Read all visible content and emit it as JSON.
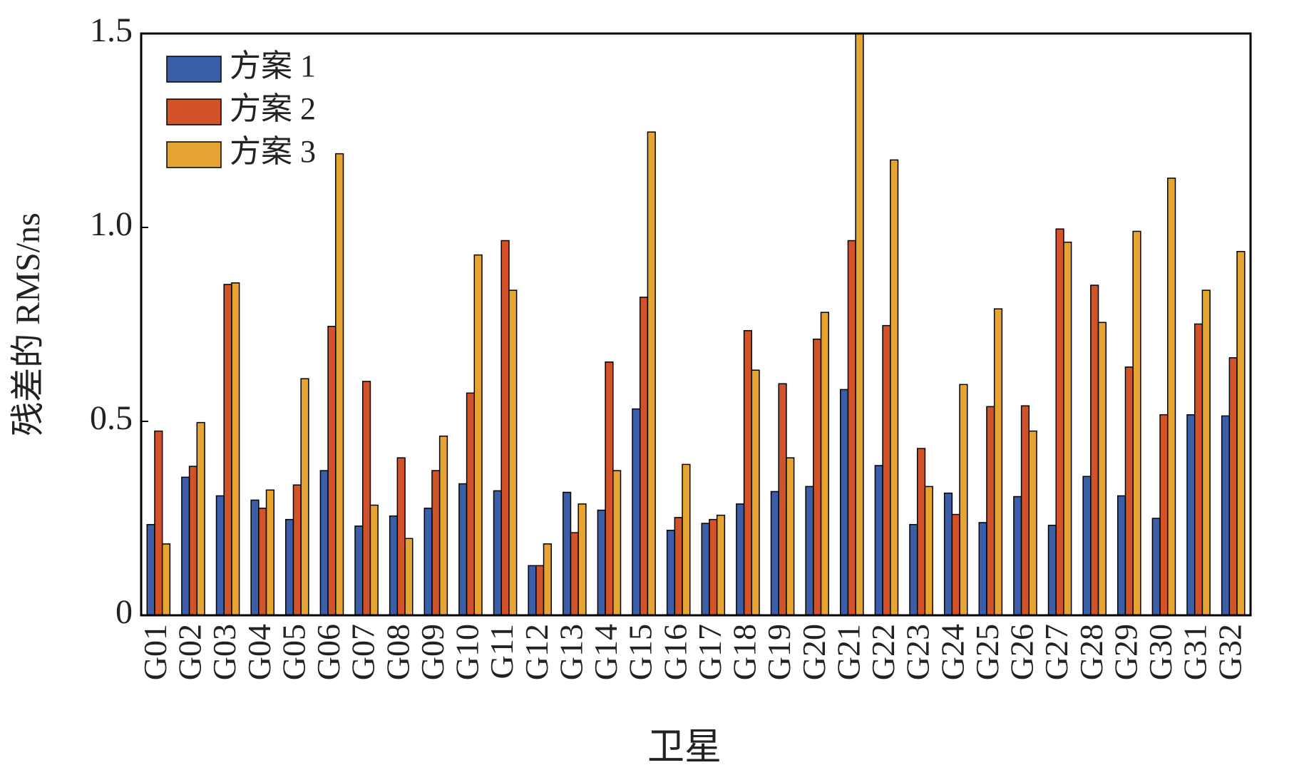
{
  "chart_data": {
    "type": "bar",
    "x_label": "卫星",
    "y_label": "残差的 RMS/ns",
    "categories": [
      "G01",
      "G02",
      "G03",
      "G04",
      "G05",
      "G06",
      "G07",
      "G08",
      "G09",
      "G10",
      "G11",
      "G12",
      "G13",
      "G14",
      "G15",
      "G16",
      "G17",
      "G18",
      "G19",
      "G20",
      "G21",
      "G22",
      "G23",
      "G24",
      "G25",
      "G26",
      "G27",
      "G28",
      "G29",
      "G30",
      "G31",
      "G32"
    ],
    "series": [
      {
        "name": "方案 1",
        "color": "#3a5ea8",
        "values": [
          0.234,
          0.356,
          0.308,
          0.297,
          0.247,
          0.373,
          0.23,
          0.256,
          0.276,
          0.339,
          0.321,
          0.128,
          0.317,
          0.271,
          0.532,
          0.219,
          0.237,
          0.287,
          0.319,
          0.332,
          0.582,
          0.386,
          0.234,
          0.315,
          0.239,
          0.306,
          0.232,
          0.358,
          0.308,
          0.25,
          0.517,
          0.514
        ]
      },
      {
        "name": "方案 2",
        "color": "#d2522a",
        "values": [
          0.475,
          0.384,
          0.853,
          0.276,
          0.336,
          0.745,
          0.603,
          0.406,
          0.373,
          0.573,
          0.966,
          0.128,
          0.213,
          0.653,
          0.82,
          0.252,
          0.247,
          0.734,
          0.597,
          0.712,
          0.966,
          0.747,
          0.43,
          0.26,
          0.538,
          0.54,
          0.996,
          0.851,
          0.64,
          0.517,
          0.751,
          0.664
        ]
      },
      {
        "name": "方案 3",
        "color": "#e6a532",
        "values": [
          0.184,
          0.497,
          0.857,
          0.323,
          0.61,
          1.19,
          0.284,
          0.198,
          0.462,
          0.929,
          0.838,
          0.184,
          0.287,
          0.373,
          1.246,
          0.389,
          0.258,
          0.632,
          0.406,
          0.781,
          1.5,
          1.174,
          0.332,
          0.595,
          0.79,
          0.475,
          0.962,
          0.755,
          0.99,
          1.127,
          0.838,
          0.938
        ]
      }
    ],
    "ylim": [
      0,
      1.5
    ],
    "yticks": [
      0,
      0.5,
      {
        "value": 1,
        "label": "1.0"
      },
      1.5
    ],
    "legend": "upper-left"
  }
}
